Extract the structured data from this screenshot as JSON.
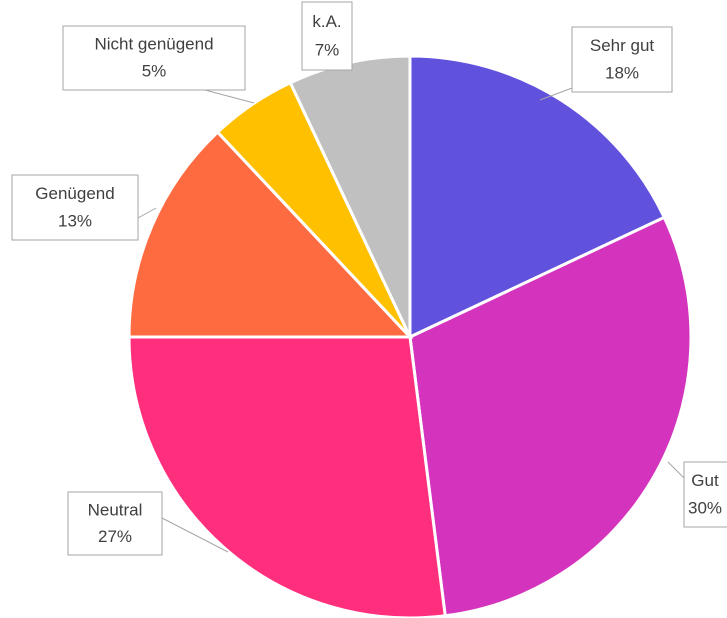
{
  "chart_data": {
    "type": "pie",
    "categories": [
      "Sehr gut",
      "Gut",
      "Neutral",
      "Genügend",
      "Nicht genügend",
      "k.A."
    ],
    "values": [
      18,
      30,
      27,
      13,
      5,
      7
    ],
    "value_labels": [
      "18%",
      "30%",
      "27%",
      "13%",
      "5%",
      "7%"
    ],
    "colors": [
      "#6152de",
      "#d433be",
      "#ff2f7e",
      "#ff6b40",
      "#ffc000",
      "#c0c0c0"
    ]
  }
}
